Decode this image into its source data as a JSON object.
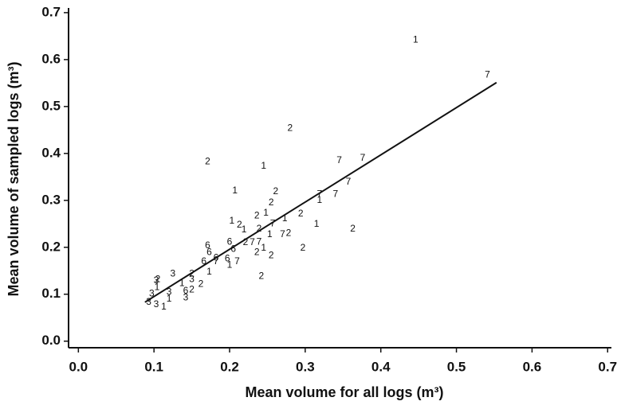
{
  "chart_data": {
    "type": "scatter",
    "xlabel": "Mean volume for all logs (m³)",
    "ylabel": "Mean volume of sampled logs (m³)",
    "xlim": [
      -0.013,
      0.705
    ],
    "ylim": [
      -0.014,
      0.71
    ],
    "xticks": [
      {
        "value": 0,
        "label": "0.0"
      },
      0.1,
      0.2,
      0.3,
      0.4,
      0.5,
      0.6,
      0.7
    ],
    "yticks": [
      {
        "value": 0,
        "label": "0.0"
      },
      0.1,
      0.2,
      0.3,
      0.4,
      0.5,
      0.6,
      0.7
    ],
    "color": "#111111",
    "fit_line": {
      "x": [
        0.088,
        0.553
      ],
      "y": [
        0.083,
        0.551
      ]
    },
    "series": [
      {
        "name": "1",
        "x": [
          0.446,
          0.245,
          0.207,
          0.319,
          0.315,
          0.273,
          0.203,
          0.219,
          0.248,
          0.253,
          0.245,
          0.2,
          0.173,
          0.137,
          0.113,
          0.104,
          0.12
        ],
        "y": [
          0.642,
          0.373,
          0.32,
          0.3,
          0.249,
          0.261,
          0.256,
          0.237,
          0.273,
          0.227,
          0.198,
          0.162,
          0.147,
          0.123,
          0.073,
          0.114,
          0.09
        ]
      },
      {
        "name": "2",
        "x": [
          0.28,
          0.171,
          0.261,
          0.255,
          0.236,
          0.294,
          0.213,
          0.363,
          0.278,
          0.239,
          0.255,
          0.236,
          0.297,
          0.221,
          0.242,
          0.15,
          0.162,
          0.15,
          0.105
        ],
        "y": [
          0.453,
          0.382,
          0.319,
          0.295,
          0.267,
          0.271,
          0.247,
          0.239,
          0.23,
          0.239,
          0.182,
          0.189,
          0.198,
          0.21,
          0.138,
          0.143,
          0.121,
          0.109,
          0.131
        ]
      },
      {
        "name": "3",
        "x": [
          0.125,
          0.15,
          0.142,
          0.093,
          0.097,
          0.103,
          0.12,
          0.103
        ],
        "y": [
          0.143,
          0.131,
          0.092,
          0.083,
          0.101,
          0.129,
          0.104,
          0.078
        ]
      },
      {
        "name": "6",
        "x": [
          0.171,
          0.173,
          0.2,
          0.197,
          0.166,
          0.182,
          0.142,
          0.205
        ],
        "y": [
          0.203,
          0.189,
          0.211,
          0.175,
          0.169,
          0.177,
          0.107,
          0.196
        ]
      },
      {
        "name": "7",
        "x": [
          0.541,
          0.345,
          0.376,
          0.357,
          0.34,
          0.319,
          0.257,
          0.239,
          0.23,
          0.27,
          0.21,
          0.182
        ],
        "y": [
          0.567,
          0.385,
          0.39,
          0.339,
          0.313,
          0.313,
          0.25,
          0.211,
          0.21,
          0.227,
          0.169,
          0.169
        ]
      }
    ]
  }
}
